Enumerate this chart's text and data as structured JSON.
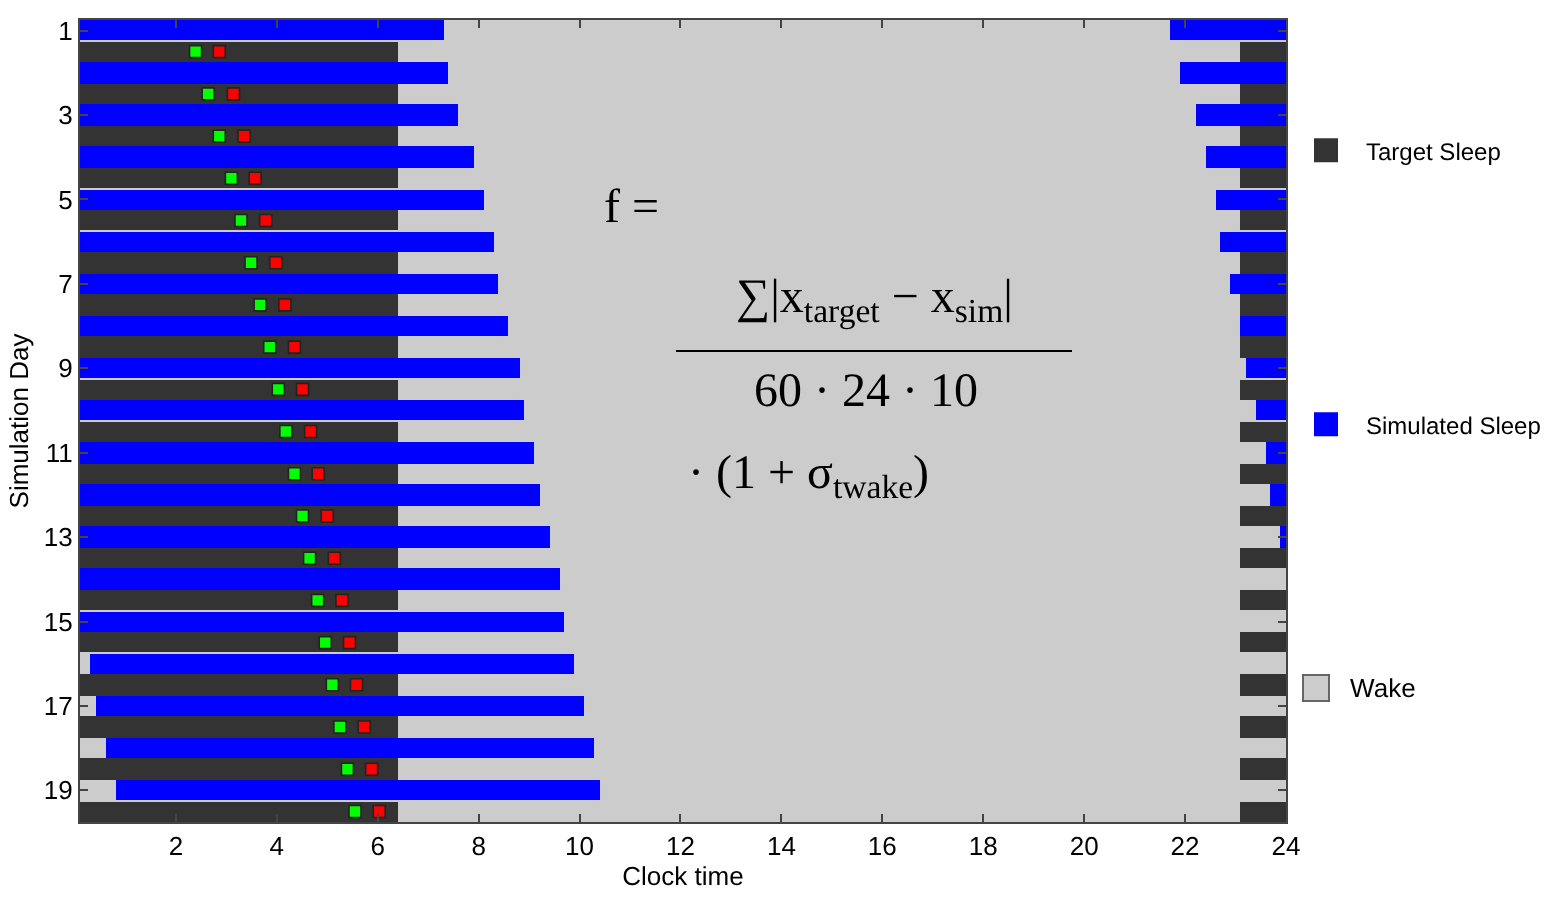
{
  "chart_data": {
    "type": "bar",
    "orientation": "horizontal",
    "xlabel": "Clock time",
    "ylabel": "Simulation Day",
    "categories": [
      "1",
      null,
      null,
      null,
      "3",
      null,
      null,
      null,
      "5",
      null,
      null,
      null,
      "7",
      null,
      null,
      null,
      "9",
      null,
      null,
      null,
      "11",
      null,
      null,
      null,
      "13",
      null,
      null,
      null,
      "15",
      null,
      null,
      null,
      "17",
      null,
      null,
      null,
      "19",
      null
    ],
    "xlim": [
      0.1,
      24
    ],
    "xticks": [
      2,
      4,
      6,
      8,
      10,
      12,
      14,
      16,
      18,
      20,
      22,
      24
    ],
    "grid": false,
    "legend": "right",
    "marker": "square",
    "bands": [
      {
        "axis": "x",
        "from": 0.1,
        "to": 24,
        "label": "Wake",
        "color": "#cccccc"
      }
    ],
    "annotations": [
      "f =",
      "∑|x$_{target}$ − x$_{sim}$|",
      "60 · 24 · 10",
      "· (1 + σ$_{t}$$_{wake}$)"
    ],
    "series": [
      {
        "name": "Target Sleep",
        "color": "#333333",
        "base": [
          null,
          0.1,
          null,
          0.1,
          null,
          0.1,
          null,
          0.1,
          null,
          0.1,
          null,
          0.1,
          null,
          0.1,
          null,
          0.1,
          null,
          0.1,
          null,
          0.1,
          null,
          0.1,
          null,
          0.1,
          null,
          0.1,
          null,
          0.1,
          null,
          0.1,
          null,
          0.1,
          null,
          0.1,
          null,
          0.1,
          null,
          0.1
        ],
        "values": [
          null,
          6.3,
          null,
          6.3,
          null,
          6.3,
          null,
          6.3,
          null,
          6.3,
          null,
          6.3,
          null,
          6.3,
          null,
          6.3,
          null,
          6.3,
          null,
          6.3,
          null,
          6.3,
          null,
          6.3,
          null,
          6.3,
          null,
          6.3,
          null,
          6.3,
          null,
          6.3,
          null,
          6.3,
          null,
          6.3,
          null,
          6.3
        ]
      },
      {
        "color": "#333333",
        "base": [
          null,
          23.1,
          null,
          23.1,
          null,
          23.1,
          null,
          23.1,
          null,
          23.1,
          null,
          23.1,
          null,
          23.1,
          null,
          23.1,
          null,
          23.1,
          null,
          23.1,
          null,
          23.1,
          null,
          23.1,
          null,
          23.1,
          null,
          23.1,
          null,
          23.1,
          null,
          23.1,
          null,
          23.1,
          null,
          23.1,
          null,
          23.1
        ],
        "values": [
          null,
          0.9,
          null,
          0.9,
          null,
          0.9,
          null,
          0.9,
          null,
          0.9,
          null,
          0.9,
          null,
          0.9,
          null,
          0.9,
          null,
          0.9,
          null,
          0.9,
          null,
          0.9,
          null,
          0.9,
          null,
          0.9,
          null,
          0.9,
          null,
          0.9,
          null,
          0.9,
          null,
          0.9,
          null,
          0.9,
          null,
          0.9
        ]
      },
      {
        "name": "Simulated Sleep",
        "color": "#0000ff",
        "base": [
          0.1,
          null,
          0.1,
          null,
          0.1,
          null,
          0.1,
          null,
          0.1,
          null,
          0.1,
          null,
          0.1,
          null,
          0.1,
          null,
          0.1,
          null,
          0.1,
          null,
          0.1,
          null,
          0.1,
          null,
          0.1,
          null,
          0.1,
          null,
          0.1,
          null,
          0.3,
          null,
          0.4,
          null,
          0.6,
          null,
          0.8,
          null
        ],
        "values": [
          7.2,
          null,
          7.3,
          null,
          7.5,
          null,
          7.8,
          null,
          8.0,
          null,
          8.2,
          null,
          8.3,
          null,
          8.5,
          null,
          8.7,
          null,
          8.8,
          null,
          9.0,
          null,
          9.1,
          null,
          9.3,
          null,
          9.5,
          null,
          9.6,
          null,
          9.6,
          null,
          9.7,
          null,
          9.7,
          null,
          9.6,
          null
        ]
      },
      {
        "color": "#0000ff",
        "base": [
          21.7,
          null,
          21.9,
          null,
          22.2,
          null,
          22.4,
          null,
          22.6,
          null,
          22.7,
          null,
          22.9,
          null,
          23.1,
          null,
          23.2,
          null,
          23.4,
          null,
          23.6,
          null,
          23.7,
          null,
          23.9,
          null,
          null,
          null,
          null,
          null,
          null,
          null,
          null,
          null,
          null,
          null,
          null,
          null
        ],
        "values": [
          2.3,
          null,
          2.1,
          null,
          1.8,
          null,
          1.6,
          null,
          1.4,
          null,
          1.3,
          null,
          1.1,
          null,
          0.9,
          null,
          0.8,
          null,
          0.6,
          null,
          0.4,
          null,
          0.3,
          null,
          0.1,
          null,
          null,
          null,
          null,
          null,
          null,
          null,
          null,
          null,
          null,
          null,
          null,
          null
        ]
      },
      {
        "type": "scatter",
        "color": "#00ff00",
        "values": [
          null,
          2.39,
          null,
          2.64,
          null,
          2.86,
          null,
          3.1,
          null,
          3.29,
          null,
          3.49,
          null,
          3.67,
          null,
          3.86,
          null,
          4.03,
          null,
          4.18,
          null,
          4.35,
          null,
          4.51,
          null,
          4.65,
          null,
          4.81,
          null,
          4.96,
          null,
          5.1,
          null,
          5.25,
          null,
          5.4,
          null,
          5.55
        ]
      },
      {
        "type": "scatter",
        "color": "#ff0000",
        "values": [
          null,
          2.86,
          null,
          3.14,
          null,
          3.35,
          null,
          3.57,
          null,
          3.78,
          null,
          3.98,
          null,
          4.16,
          null,
          4.35,
          null,
          4.51,
          null,
          4.67,
          null,
          4.82,
          null,
          5.0,
          null,
          5.14,
          null,
          5.29,
          null,
          5.44,
          null,
          5.58,
          null,
          5.73,
          null,
          5.88,
          null,
          6.03
        ]
      }
    ]
  }
}
